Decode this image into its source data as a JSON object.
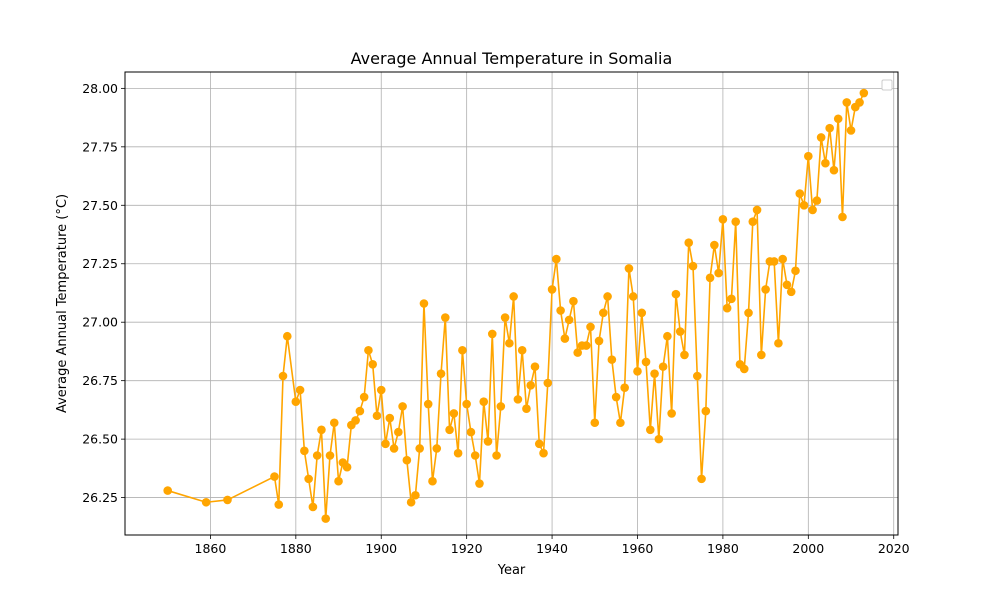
{
  "chart_data": {
    "type": "line",
    "title": "Average Annual Temperature in Somalia",
    "xlabel": "Year",
    "ylabel": "Average Annual Temperature (°C)",
    "xlim": [
      1840,
      2021
    ],
    "ylim": [
      26.09,
      28.07
    ],
    "xticks": [
      1860,
      1880,
      1900,
      1920,
      1940,
      1960,
      1980,
      2000,
      2020
    ],
    "yticks": [
      26.25,
      26.5,
      26.75,
      27.0,
      27.25,
      27.5,
      27.75,
      28.0
    ],
    "ytick_labels": [
      "26.25",
      "26.50",
      "26.75",
      "27.00",
      "27.25",
      "27.50",
      "27.75",
      "28.00"
    ],
    "grid": true,
    "legend": "top-right",
    "color": "#ffa500",
    "marker": "circle",
    "series": [
      {
        "x": [
          1850,
          1859,
          1864,
          1875,
          1876,
          1877,
          1878,
          1880,
          1881,
          1882,
          1883,
          1884,
          1885,
          1886,
          1887,
          1888,
          1889,
          1890,
          1891,
          1892,
          1893,
          1894,
          1895,
          1896,
          1897,
          1898,
          1899,
          1900,
          1901,
          1902,
          1903,
          1904,
          1905,
          1906,
          1907,
          1908,
          1909,
          1910,
          1911,
          1912,
          1913,
          1914,
          1915,
          1916,
          1917,
          1918,
          1919,
          1920,
          1921,
          1922,
          1923,
          1924,
          1925,
          1926,
          1927,
          1928,
          1929,
          1930,
          1931,
          1932,
          1933,
          1934,
          1935,
          1936,
          1937,
          1938,
          1939,
          1940,
          1941,
          1942,
          1943,
          1944,
          1945,
          1946,
          1947,
          1948,
          1949,
          1950,
          1951,
          1952,
          1953,
          1954,
          1955,
          1956,
          1957,
          1958,
          1959,
          1960,
          1961,
          1962,
          1963,
          1964,
          1965,
          1966,
          1967,
          1968,
          1969,
          1970,
          1971,
          1972,
          1973,
          1974,
          1975,
          1976,
          1977,
          1978,
          1979,
          1980,
          1981,
          1982,
          1983,
          1984,
          1985,
          1986,
          1987,
          1988,
          1989,
          1990,
          1991,
          1992,
          1993,
          1994,
          1995,
          1996,
          1997,
          1998,
          1999,
          2000,
          2001,
          2002,
          2003,
          2004,
          2005,
          2006,
          2007,
          2008,
          2009,
          2010,
          2011,
          2012,
          2013
        ],
        "values": [
          26.28,
          26.23,
          26.24,
          26.34,
          26.22,
          26.77,
          26.94,
          26.66,
          26.71,
          26.45,
          26.33,
          26.21,
          26.43,
          26.54,
          26.16,
          26.43,
          26.57,
          26.32,
          26.4,
          26.38,
          26.56,
          26.58,
          26.62,
          26.68,
          26.88,
          26.82,
          26.6,
          26.71,
          26.48,
          26.59,
          26.46,
          26.53,
          26.64,
          26.41,
          26.23,
          26.26,
          26.46,
          27.08,
          26.65,
          26.32,
          26.46,
          26.78,
          27.02,
          26.54,
          26.61,
          26.44,
          26.88,
          26.65,
          26.53,
          26.43,
          26.31,
          26.66,
          26.49,
          26.95,
          26.43,
          26.64,
          27.02,
          26.91,
          27.11,
          26.67,
          26.88,
          26.63,
          26.73,
          26.81,
          26.48,
          26.44,
          26.74,
          27.14,
          27.27,
          27.05,
          26.93,
          27.01,
          27.09,
          26.87,
          26.9,
          26.9,
          26.98,
          26.57,
          26.92,
          27.04,
          27.11,
          26.84,
          26.68,
          26.57,
          26.72,
          27.23,
          27.11,
          26.79,
          27.04,
          26.83,
          26.54,
          26.78,
          26.5,
          26.81,
          26.94,
          26.61,
          27.12,
          26.96,
          26.86,
          27.34,
          27.24,
          26.77,
          26.33,
          26.62,
          27.19,
          27.33,
          27.21,
          27.44,
          27.06,
          27.1,
          27.43,
          26.82,
          26.8,
          27.04,
          27.43,
          27.48,
          26.86,
          27.14,
          27.26,
          27.26,
          26.91,
          27.27,
          27.16,
          27.13,
          27.22,
          27.55,
          27.5,
          27.71,
          27.48,
          27.52,
          27.79,
          27.68,
          27.83,
          27.65,
          27.87,
          27.45,
          27.94,
          27.82,
          27.92,
          27.94,
          27.98
        ]
      }
    ]
  }
}
